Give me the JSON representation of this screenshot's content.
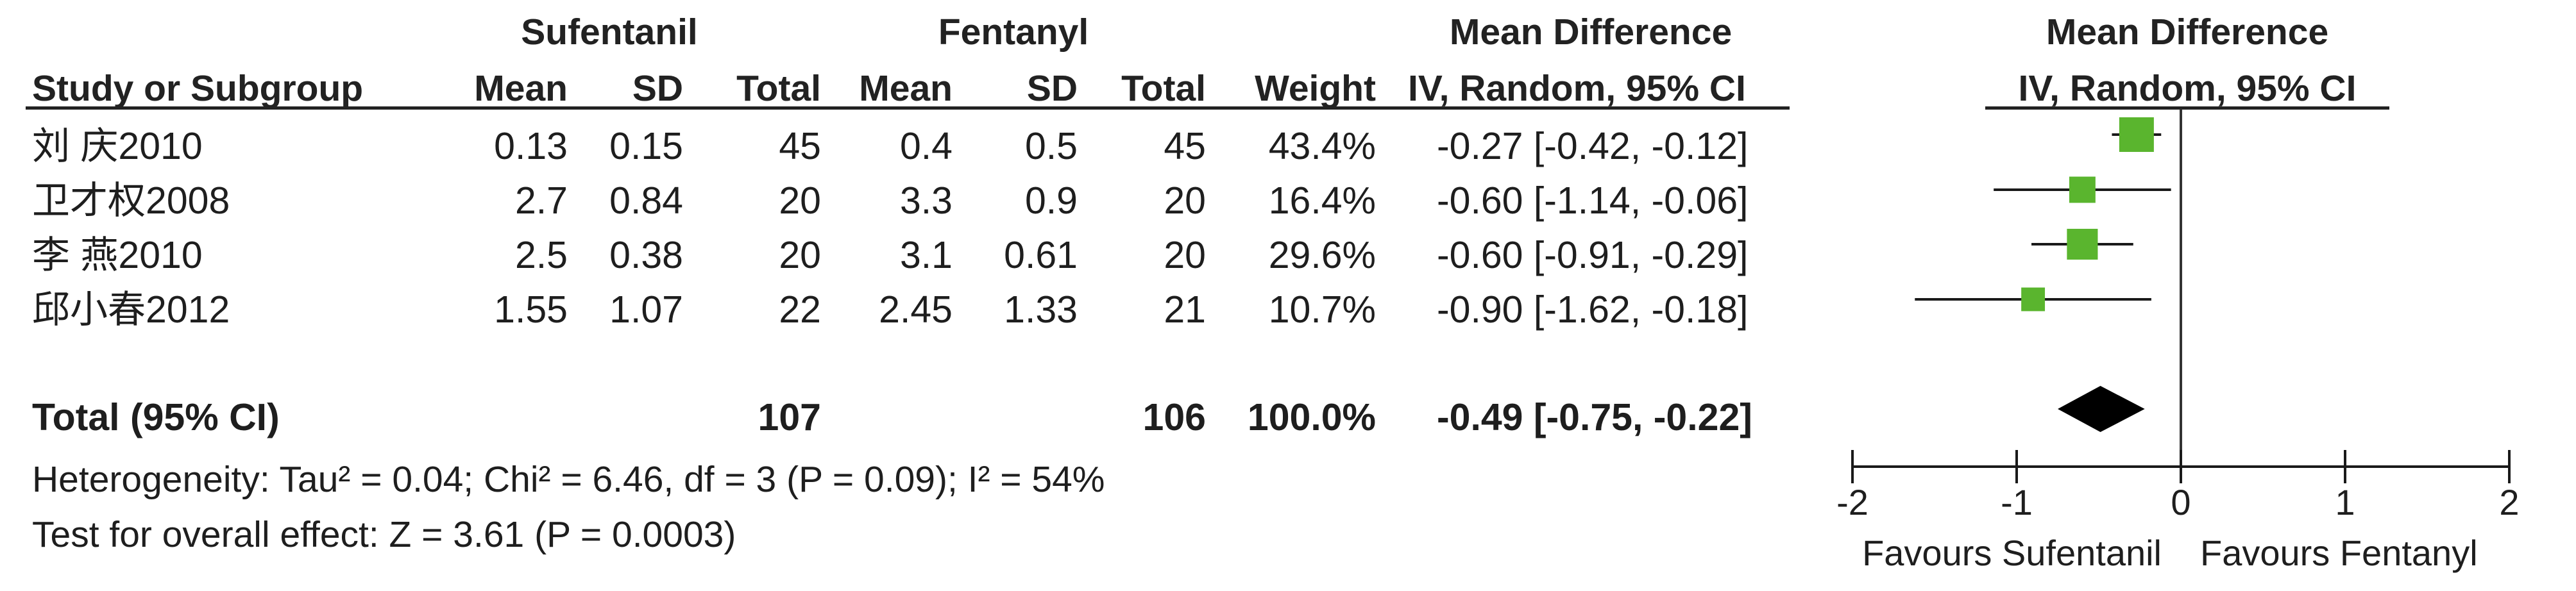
{
  "header": {
    "group1": "Sufentanil",
    "group2": "Fentanyl",
    "md_title": "Mean Difference",
    "md_sub": "IV, Random, 95% CI",
    "plot_title": "Mean Difference",
    "plot_sub": "IV, Random, 95% CI",
    "study_col": "Study or Subgroup",
    "mean1": "Mean",
    "sd1": "SD",
    "total1": "Total",
    "mean2": "Mean",
    "sd2": "SD",
    "total2": "Total",
    "weight": "Weight"
  },
  "rows": [
    {
      "study": "刘 庆2010",
      "mean1": "0.13",
      "sd1": "0.15",
      "total1": "45",
      "mean2": "0.4",
      "sd2": "0.5",
      "total2": "45",
      "weight": "43.4%",
      "ci": "-0.27 [-0.42, -0.12]"
    },
    {
      "study": "卫才权2008",
      "mean1": "2.7",
      "sd1": "0.84",
      "total1": "20",
      "mean2": "3.3",
      "sd2": "0.9",
      "total2": "20",
      "weight": "16.4%",
      "ci": "-0.60 [-1.14, -0.06]"
    },
    {
      "study": "李 燕2010",
      "mean1": "2.5",
      "sd1": "0.38",
      "total1": "20",
      "mean2": "3.1",
      "sd2": "0.61",
      "total2": "20",
      "weight": "29.6%",
      "ci": "-0.60 [-0.91, -0.29]"
    },
    {
      "study": "邱小春2012",
      "mean1": "1.55",
      "sd1": "1.07",
      "total1": "22",
      "mean2": "2.45",
      "sd2": "1.33",
      "total2": "21",
      "weight": "10.7%",
      "ci": "-0.90 [-1.62, -0.18]"
    }
  ],
  "total": {
    "label": "Total (95% CI)",
    "total1": "107",
    "total2": "106",
    "weight": "100.0%",
    "ci": "-0.49 [-0.75, -0.22]"
  },
  "notes": {
    "heterogeneity": "Heterogeneity: Tau² = 0.04; Chi² = 6.46, df = 3 (P = 0.09); I² = 54%",
    "overall": "Test for overall effect: Z = 3.61 (P = 0.0003)"
  },
  "chart_data": {
    "type": "forest",
    "xlim": [
      -2,
      2
    ],
    "ticks": [
      -2,
      -1,
      0,
      1,
      2
    ],
    "tick_labels": [
      "-2",
      "-1",
      "0",
      "1",
      "2"
    ],
    "xlabel_left": "Favours Sufentanil",
    "xlabel_right": "Favours Fentanyl",
    "marker_color": "#5ab52e",
    "studies": [
      {
        "name": "刘 庆2010",
        "md": -0.27,
        "lo": -0.42,
        "hi": -0.12,
        "weight": 43.4
      },
      {
        "name": "卫才权2008",
        "md": -0.6,
        "lo": -1.14,
        "hi": -0.06,
        "weight": 16.4
      },
      {
        "name": "李 燕2010",
        "md": -0.6,
        "lo": -0.91,
        "hi": -0.29,
        "weight": 29.6
      },
      {
        "name": "邱小春2012",
        "md": -0.9,
        "lo": -1.62,
        "hi": -0.18,
        "weight": 10.7
      }
    ],
    "pooled": {
      "md": -0.49,
      "lo": -0.75,
      "hi": -0.22
    }
  }
}
